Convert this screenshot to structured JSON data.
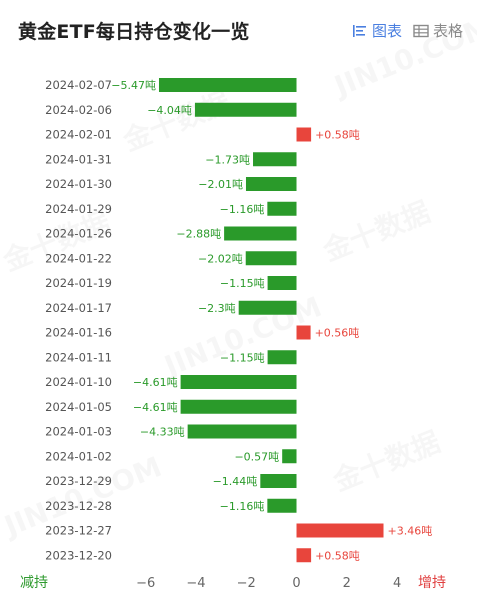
{
  "header": {
    "title": "黄金ETF每日持仓变化一览",
    "tab_chart": "图表",
    "tab_table": "表格"
  },
  "legend": {
    "decrease": "减持",
    "increase": "增持"
  },
  "colors": {
    "decrease": "#2a9a2a",
    "increase": "#e8453c",
    "active_tab": "#4a7fe0",
    "inactive_tab": "#8a8a8a"
  },
  "chart_data": {
    "type": "bar",
    "orientation": "horizontal",
    "unit": "吨",
    "categories": [
      "2024-02-07",
      "2024-02-06",
      "2024-02-01",
      "2024-01-31",
      "2024-01-30",
      "2024-01-29",
      "2024-01-26",
      "2024-01-22",
      "2024-01-19",
      "2024-01-17",
      "2024-01-16",
      "2024-01-11",
      "2024-01-10",
      "2024-01-05",
      "2024-01-03",
      "2024-01-02",
      "2023-12-29",
      "2023-12-28",
      "2023-12-27",
      "2023-12-20"
    ],
    "values": [
      -5.47,
      -4.04,
      0.58,
      -1.73,
      -2.01,
      -1.16,
      -2.88,
      -2.02,
      -1.15,
      -2.3,
      0.56,
      -1.15,
      -4.61,
      -4.61,
      -4.33,
      -0.57,
      -1.44,
      -1.16,
      3.46,
      0.58
    ],
    "labels": [
      "−5.47吨",
      "−4.04吨",
      "+0.58吨",
      "−1.73吨",
      "−2.01吨",
      "−1.16吨",
      "−2.88吨",
      "−2.02吨",
      "−1.15吨",
      "−2.3吨",
      "+0.56吨",
      "−1.15吨",
      "−4.61吨",
      "−4.61吨",
      "−4.33吨",
      "−0.57吨",
      "−1.44吨",
      "−1.16吨",
      "+3.46吨",
      "+0.58吨"
    ],
    "xticks": [
      -6,
      -4,
      -2,
      0,
      2,
      4
    ],
    "xtick_labels": [
      "−6",
      "−4",
      "−2",
      "0",
      "2",
      "4"
    ],
    "xlim": [
      -7.1,
      6.9
    ],
    "grid": false
  }
}
